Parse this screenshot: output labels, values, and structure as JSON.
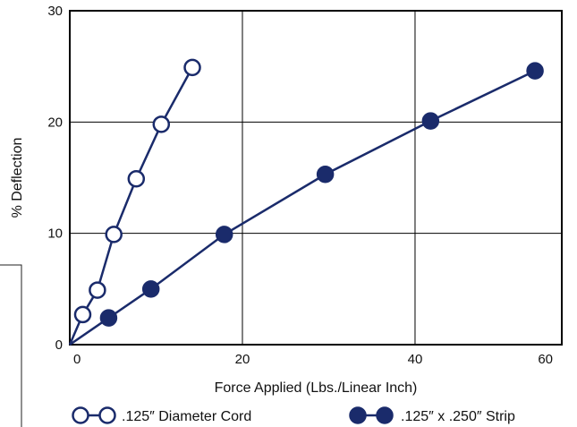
{
  "chart_data": {
    "type": "line",
    "xlabel": "Force Applied (Lbs./Linear Inch)",
    "ylabel": "% Deflection",
    "xlim": [
      0,
      57
    ],
    "ylim": [
      0,
      30
    ],
    "x_ticks": [
      "0",
      "20",
      "40",
      "60"
    ],
    "y_ticks": [
      "0",
      "10",
      "20",
      "30"
    ],
    "grid": true,
    "legend_position": "bottom",
    "series": [
      {
        "name": ".125″ Diameter Cord",
        "marker": "open-circle",
        "color": "#1a2b6b",
        "x": [
          1.5,
          3.2,
          5.1,
          7.7,
          10.6,
          14.2
        ],
        "y": [
          2.7,
          4.9,
          9.9,
          14.9,
          19.8,
          24.9
        ]
      },
      {
        "name": ".125″ x .250″ Strip",
        "marker": "filled-circle",
        "color": "#1a2b6b",
        "x": [
          4.5,
          9.4,
          17.9,
          29.6,
          41.8,
          53.9
        ],
        "y": [
          2.4,
          5.0,
          9.9,
          15.3,
          20.1,
          24.6
        ]
      }
    ]
  }
}
